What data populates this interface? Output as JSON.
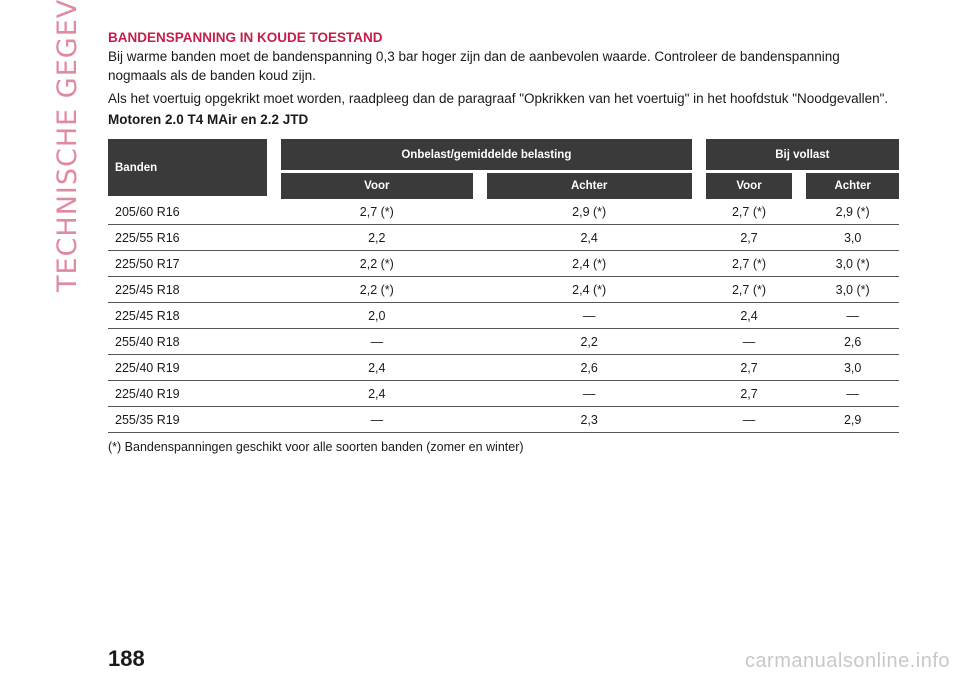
{
  "side_title": "TECHNISCHE GEGEVENS",
  "heading": "BANDENSPANNING IN KOUDE TOESTAND",
  "paragraph1": "Bij warme banden moet de bandenspanning 0,3 bar hoger zijn dan de aanbevolen waarde. Controleer de bandenspanning nogmaals als de banden koud zijn.",
  "paragraph2": "Als het voertuig opgekrikt moet worden, raadpleeg dan de paragraaf \"Opkrikken van het voertuig\" in het hoofdstuk \"Noodgevallen\".",
  "engines": "Motoren 2.0 T4 MAir en 2.2 JTD",
  "table": {
    "col_banden": "Banden",
    "group1": "Onbelast/gemiddelde belasting",
    "group2": "Bij vollast",
    "voor": "Voor",
    "achter": "Achter",
    "rows": [
      {
        "size": "205/60 R16",
        "v1": "2,7 (*)",
        "a1": "2,9 (*)",
        "v2": "2,7 (*)",
        "a2": "2,9 (*)"
      },
      {
        "size": "225/55 R16",
        "v1": "2,2",
        "a1": "2,4",
        "v2": "2,7",
        "a2": "3,0"
      },
      {
        "size": "225/50 R17",
        "v1": "2,2 (*)",
        "a1": "2,4 (*)",
        "v2": "2,7 (*)",
        "a2": "3,0 (*)"
      },
      {
        "size": "225/45 R18",
        "v1": "2,2 (*)",
        "a1": "2,4 (*)",
        "v2": "2,7 (*)",
        "a2": "3,0 (*)"
      },
      {
        "size": "225/45 R18",
        "v1": "2,0",
        "a1": "—",
        "v2": "2,4",
        "a2": "—"
      },
      {
        "size": "255/40 R18",
        "v1": "—",
        "a1": "2,2",
        "v2": "—",
        "a2": "2,6"
      },
      {
        "size": "225/40 R19",
        "v1": "2,4",
        "a1": "2,6",
        "v2": "2,7",
        "a2": "3,0"
      },
      {
        "size": "225/40 R19",
        "v1": "2,4",
        "a1": "—",
        "v2": "2,7",
        "a2": "—"
      },
      {
        "size": "255/35 R19",
        "v1": "—",
        "a1": "2,3",
        "v2": "—",
        "a2": "2,9"
      }
    ]
  },
  "footnote": "(*) Bandenspanningen geschikt voor alle soorten banden (zomer en winter)",
  "page_number": "188",
  "watermark": "carmanualsonline.info"
}
